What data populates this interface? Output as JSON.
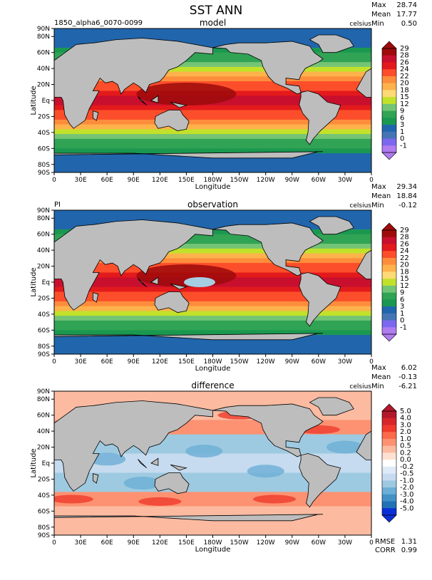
{
  "figure": {
    "title": "SST ANN"
  },
  "chart_data": [
    {
      "type": "heatmap",
      "case_label": "1850_alpha6_0070-0099",
      "panel_title": "model",
      "units": "celsius",
      "stats": {
        "max_label": "Max",
        "max": "28.74",
        "mean_label": "Mean",
        "mean": "17.77",
        "min_label": "Min",
        "min": "0.50"
      },
      "xlabel": "Longitude",
      "ylabel": "Latitude",
      "x_ticks": [
        "0",
        "30E",
        "60E",
        "90E",
        "120E",
        "150E",
        "180W",
        "150W",
        "120W",
        "90W",
        "60W",
        "30W",
        "0"
      ],
      "y_ticks": [
        "90N",
        "80N",
        "60N",
        "40N",
        "20N",
        "Eq",
        "20S",
        "40S",
        "60S",
        "80S",
        "90S"
      ],
      "colorbar": {
        "labels": [
          "29",
          "28",
          "26",
          "24",
          "22",
          "20",
          "18",
          "15",
          "12",
          "9",
          "6",
          "3",
          "1",
          "0",
          "-1"
        ],
        "colors": [
          "#9e0b0b",
          "#c8102e",
          "#e31a1c",
          "#fc4e2a",
          "#fd8d3c",
          "#feb24c",
          "#fed976",
          "#c2e12a",
          "#74c476",
          "#31a354",
          "#1a9850",
          "#2166ac",
          "#4575b4",
          "#7b68ee",
          "#b07cf0"
        ]
      },
      "ylim": [
        -90,
        90
      ],
      "xlim": [
        0,
        360
      ]
    },
    {
      "type": "heatmap",
      "case_label": "PI",
      "panel_title": "observation",
      "units": "celsius",
      "stats": {
        "max_label": "Max",
        "max": "29.34",
        "mean_label": "Mean",
        "mean": "18.84",
        "min_label": "Min",
        "min": "-0.12"
      },
      "xlabel": "Longitude",
      "ylabel": "Latitude",
      "x_ticks": [
        "0",
        "30E",
        "60E",
        "90E",
        "120E",
        "150E",
        "180W",
        "150W",
        "120W",
        "90W",
        "60W",
        "30W",
        "0"
      ],
      "y_ticks": [
        "90N",
        "80N",
        "60N",
        "40N",
        "20N",
        "Eq",
        "20S",
        "40S",
        "60S",
        "80S",
        "90S"
      ],
      "colorbar": {
        "labels": [
          "29",
          "28",
          "26",
          "24",
          "22",
          "20",
          "18",
          "15",
          "12",
          "9",
          "6",
          "3",
          "1",
          "0",
          "-1"
        ],
        "colors": [
          "#9e0b0b",
          "#c8102e",
          "#e31a1c",
          "#fc4e2a",
          "#fd8d3c",
          "#feb24c",
          "#fed976",
          "#c2e12a",
          "#74c476",
          "#31a354",
          "#1a9850",
          "#2166ac",
          "#4575b4",
          "#7b68ee",
          "#b07cf0"
        ]
      },
      "ylim": [
        -90,
        90
      ],
      "xlim": [
        0,
        360
      ]
    },
    {
      "type": "heatmap",
      "case_label": "",
      "panel_title": "difference",
      "units": "celsius",
      "stats": {
        "max_label": "Max",
        "max": "6.02",
        "mean_label": "Mean",
        "mean": "-0.13",
        "min_label": "Min",
        "min": "-6.21"
      },
      "rmse_label": "RMSE",
      "rmse": "1.31",
      "corr_label": "CORR",
      "corr": "0.99",
      "xlabel": "Longitude",
      "ylabel": "Latitude",
      "x_ticks": [
        "0",
        "30E",
        "60E",
        "90E",
        "120E",
        "150E",
        "180W",
        "150W",
        "120W",
        "90W",
        "60W",
        "30W",
        "0"
      ],
      "y_ticks": [
        "90N",
        "80N",
        "60N",
        "40N",
        "20N",
        "Eq",
        "20S",
        "40S",
        "60S",
        "80S",
        "90S"
      ],
      "colorbar": {
        "labels": [
          "5.0",
          "4.0",
          "3.0",
          "2.0",
          "1.0",
          "0.5",
          "0.2",
          "0.0",
          "-0.2",
          "-0.5",
          "-1.0",
          "-2.0",
          "-3.0",
          "-4.0",
          "-5.0"
        ],
        "colors": [
          "#b2182b",
          "#d6262b",
          "#ef3b2c",
          "#fb6a4a",
          "#fc9272",
          "#fcbba1",
          "#fee0d2",
          "#ffffff",
          "#deebf7",
          "#c6dbef",
          "#9ecae1",
          "#6baed6",
          "#4292c6",
          "#2171b5",
          "#0b2fd6"
        ]
      },
      "ylim": [
        -90,
        90
      ],
      "xlim": [
        0,
        360
      ]
    }
  ]
}
